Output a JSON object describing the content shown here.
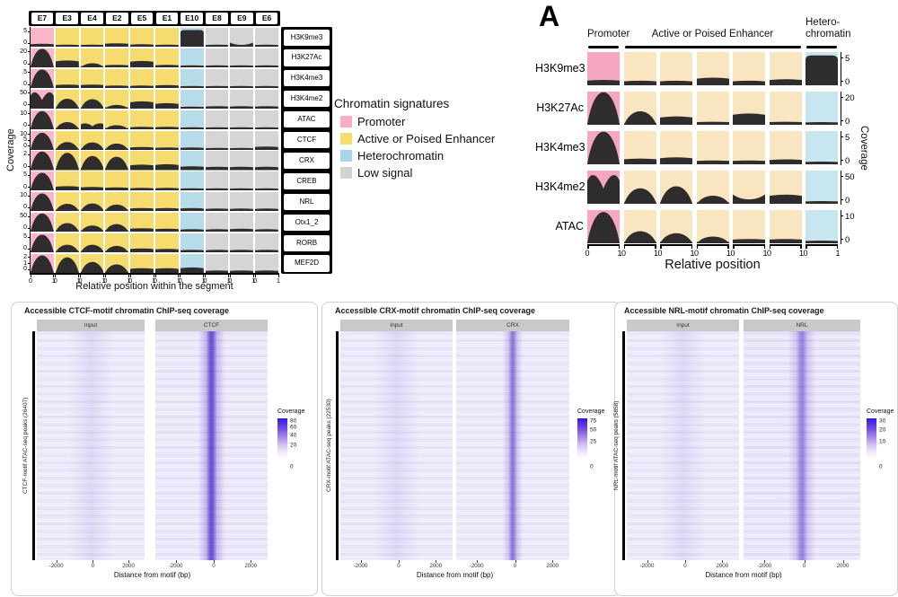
{
  "colors": {
    "promoter_left": "#FAB5C8",
    "enhancer_left": "#F6DB6E",
    "heterochromatin_left": "#B7DCE9",
    "low_signal": "#D5D5D5",
    "promoter_a": "#F6A6C2",
    "enhancer_a": "#FAE5C1",
    "heterochromatin_a": "#C7E6F0",
    "curve": "#2E2C2C",
    "heatmap_purple": "#5B3FD4",
    "colorbar_top": "#3914E2",
    "facet_strip_gray": "#C9C9C9"
  },
  "legend": {
    "title": "Chromatin signatures",
    "items": [
      {
        "label": "Promoter",
        "color": "#F9AEC6"
      },
      {
        "label": "Active or Poised Enhancer",
        "color": "#F6DB6E"
      },
      {
        "label": "Heterochromatin",
        "color": "#A9D6E6"
      },
      {
        "label": "Low signal",
        "color": "#D3D3D3"
      }
    ]
  },
  "chart_data": [
    {
      "type": "area",
      "name": "chromatin-signatures-by-segment",
      "xlabel": "Relative position within the segment",
      "ylabel": "Coverage",
      "x_range": [
        0,
        1
      ],
      "columns": [
        "E7",
        "E3",
        "E4",
        "E2",
        "E5",
        "E1",
        "E10",
        "E8",
        "E9",
        "E6"
      ],
      "column_signature": [
        "Promoter",
        "Active or Poised Enhancer",
        "Active or Poised Enhancer",
        "Active or Poised Enhancer",
        "Active or Poised Enhancer",
        "Active or Poised Enhancer",
        "Heterochromatin",
        "Low signal",
        "Low signal",
        "Low signal"
      ],
      "column_classes": [
        "promoter",
        "enh_l",
        "enh_l",
        "enh_l",
        "enh_l",
        "enh_l",
        "het_l",
        "low",
        "low",
        "low"
      ],
      "rows": [
        "H3K9me3",
        "H3K27Ac",
        "H3K4me3",
        "H3K4me2",
        "ATAC",
        "CTCF",
        "CRX",
        "CREB",
        "NRL",
        "Otx1_2",
        "RORB",
        "MEF2D"
      ],
      "row_ymax": [
        5,
        20,
        5,
        50,
        10,
        10,
        2,
        5,
        10,
        50,
        5,
        2
      ],
      "row_yticks": [
        [
          "5",
          "0"
        ],
        [
          "20",
          "0"
        ],
        [
          "5",
          "0"
        ],
        [
          "50",
          "0"
        ],
        [
          "10",
          "0"
        ],
        [
          "10",
          "5",
          "0"
        ],
        [
          "2",
          "0"
        ],
        [
          "5",
          "0"
        ],
        [
          "10",
          "0"
        ],
        [
          "50",
          "0"
        ],
        [
          "5",
          "0"
        ],
        [
          "2",
          "1",
          "0"
        ]
      ],
      "xticks": [
        "0",
        "1"
      ],
      "cells": [
        [
          "f14",
          "f10",
          "f10",
          "f16",
          "f12",
          "f10",
          "k88",
          "f10",
          "u22",
          "f10"
        ],
        [
          "d97",
          "f32",
          "d22",
          "f12",
          "f30",
          "f12",
          "f10",
          "f10",
          "f10",
          "f10"
        ],
        [
          "d97",
          "f16",
          "f16",
          "f12",
          "f12",
          "f14",
          "f10",
          "f10",
          "f10",
          "f10"
        ],
        [
          "m92",
          "d52",
          "d50",
          "d20",
          "f34",
          "f26",
          "f10",
          "f12",
          "f12",
          "f12"
        ],
        [
          "d95",
          "d38",
          "m34",
          "d22",
          "f12",
          "f12",
          "f10",
          "f10",
          "f10",
          "f10"
        ],
        [
          "d90",
          "d42",
          "d40",
          "d34",
          "f14",
          "f12",
          "f12",
          "f10",
          "f10",
          "f16"
        ],
        [
          "d95",
          "d88",
          "d72",
          "d68",
          "f24",
          "f26",
          "f16",
          "f14",
          "f14",
          "f14"
        ],
        [
          "d92",
          "f20",
          "f16",
          "f14",
          "f12",
          "f12",
          "f10",
          "f10",
          "f10",
          "f10"
        ],
        [
          "d92",
          "d38",
          "d40",
          "d34",
          "f14",
          "f14",
          "f14",
          "f12",
          "f12",
          "f12"
        ],
        [
          "d95",
          "d45",
          "d32",
          "d40",
          "f16",
          "f14",
          "f12",
          "f12",
          "f14",
          "f12"
        ],
        [
          "d92",
          "d40",
          "d40",
          "d34",
          "f18",
          "f16",
          "f12",
          "f12",
          "f12",
          "f12"
        ],
        [
          "d92",
          "d82",
          "d58",
          "d45",
          "f22",
          "f22",
          "f26",
          "f12",
          "f12",
          "f12"
        ]
      ]
    },
    {
      "type": "area",
      "name": "panel-a-summary",
      "tag": "A",
      "xlabel": "Relative position",
      "ylabel": "Coverage",
      "x_range": [
        0,
        1
      ],
      "groups": [
        {
          "lines": [
            "Promoter"
          ],
          "span": 1
        },
        {
          "lines": [
            "Active or Poised Enhancer"
          ],
          "span": 5
        },
        {
          "lines": [
            "Hetero-",
            "chromatin"
          ],
          "span": 1
        }
      ],
      "column_classes": [
        "promoter_a",
        "enh_a",
        "enh_a",
        "enh_a",
        "enh_a",
        "enh_a",
        "het_a"
      ],
      "rows": [
        "H3K9me3",
        "H3K27Ac",
        "H3K4me3",
        "H3K4me2",
        "ATAC"
      ],
      "row_ymax": [
        5,
        20,
        5,
        50,
        10
      ],
      "row_yticks": [
        [
          "5",
          "0"
        ],
        [
          "20",
          "0"
        ],
        [
          "5",
          "0"
        ],
        [
          "50",
          "0"
        ],
        [
          "10",
          "0"
        ]
      ],
      "xticks": [
        "0",
        "1"
      ],
      "cells": [
        [
          "f14",
          "f12",
          "f12",
          "f20",
          "f12",
          "f16",
          "k90"
        ],
        [
          "d97",
          "d40",
          "f22",
          "f8",
          "f30",
          "f8",
          "f7"
        ],
        [
          "d97",
          "f15",
          "f18",
          "f10",
          "f10",
          "f13",
          "f7"
        ],
        [
          "m92",
          "d46",
          "d52",
          "d24",
          "u28",
          "f24",
          "f7"
        ],
        [
          "d93",
          "d36",
          "d30",
          "d20",
          "f11",
          "f11",
          "f7"
        ]
      ]
    },
    {
      "type": "heatmap",
      "name": "ctcf-chip-heatmap",
      "title": "Accessible CTCF-motif chromatin ChIP-seq coverage",
      "facets": [
        "Input",
        "CTCF"
      ],
      "ylabel": "CTCF-motif ATAC-seq peaks (26407)",
      "peaks": 26407,
      "x_range": [
        -3000,
        3000
      ],
      "xticks": [
        "-2000",
        "0",
        "2000"
      ],
      "xlabel": "Distance from motif (bp)",
      "colorbar_title": "Coverage",
      "colorbar_ticks": [
        80,
        60,
        40,
        20,
        0
      ]
    },
    {
      "type": "heatmap",
      "name": "crx-chip-heatmap",
      "title": "Accessible CRX-motif chromatin ChIP-seq coverage",
      "facets": [
        "Input",
        "CRX"
      ],
      "ylabel": "CRX-motif ATAC-seq peaks (22530)",
      "peaks": 22530,
      "x_range": [
        -3000,
        3000
      ],
      "xticks": [
        "-2000",
        "0",
        "2000"
      ],
      "xlabel": "Distance from motif (bp)",
      "colorbar_title": "Coverage",
      "colorbar_ticks": [
        75,
        50,
        25,
        0
      ]
    },
    {
      "type": "heatmap",
      "name": "nrl-chip-heatmap",
      "title": "Accessible NRL-motif chromatin ChIP-seq coverage",
      "facets": [
        "Input",
        "NRL"
      ],
      "ylabel": "NRL-motif ATAC-seq peaks (5858)",
      "peaks": 5858,
      "x_range": [
        -3000,
        3000
      ],
      "xticks": [
        "-2000",
        "0",
        "2000"
      ],
      "xlabel": "Distance from motif (bp)",
      "colorbar_title": "Coverage",
      "colorbar_ticks": [
        30,
        20,
        10,
        0
      ]
    }
  ]
}
